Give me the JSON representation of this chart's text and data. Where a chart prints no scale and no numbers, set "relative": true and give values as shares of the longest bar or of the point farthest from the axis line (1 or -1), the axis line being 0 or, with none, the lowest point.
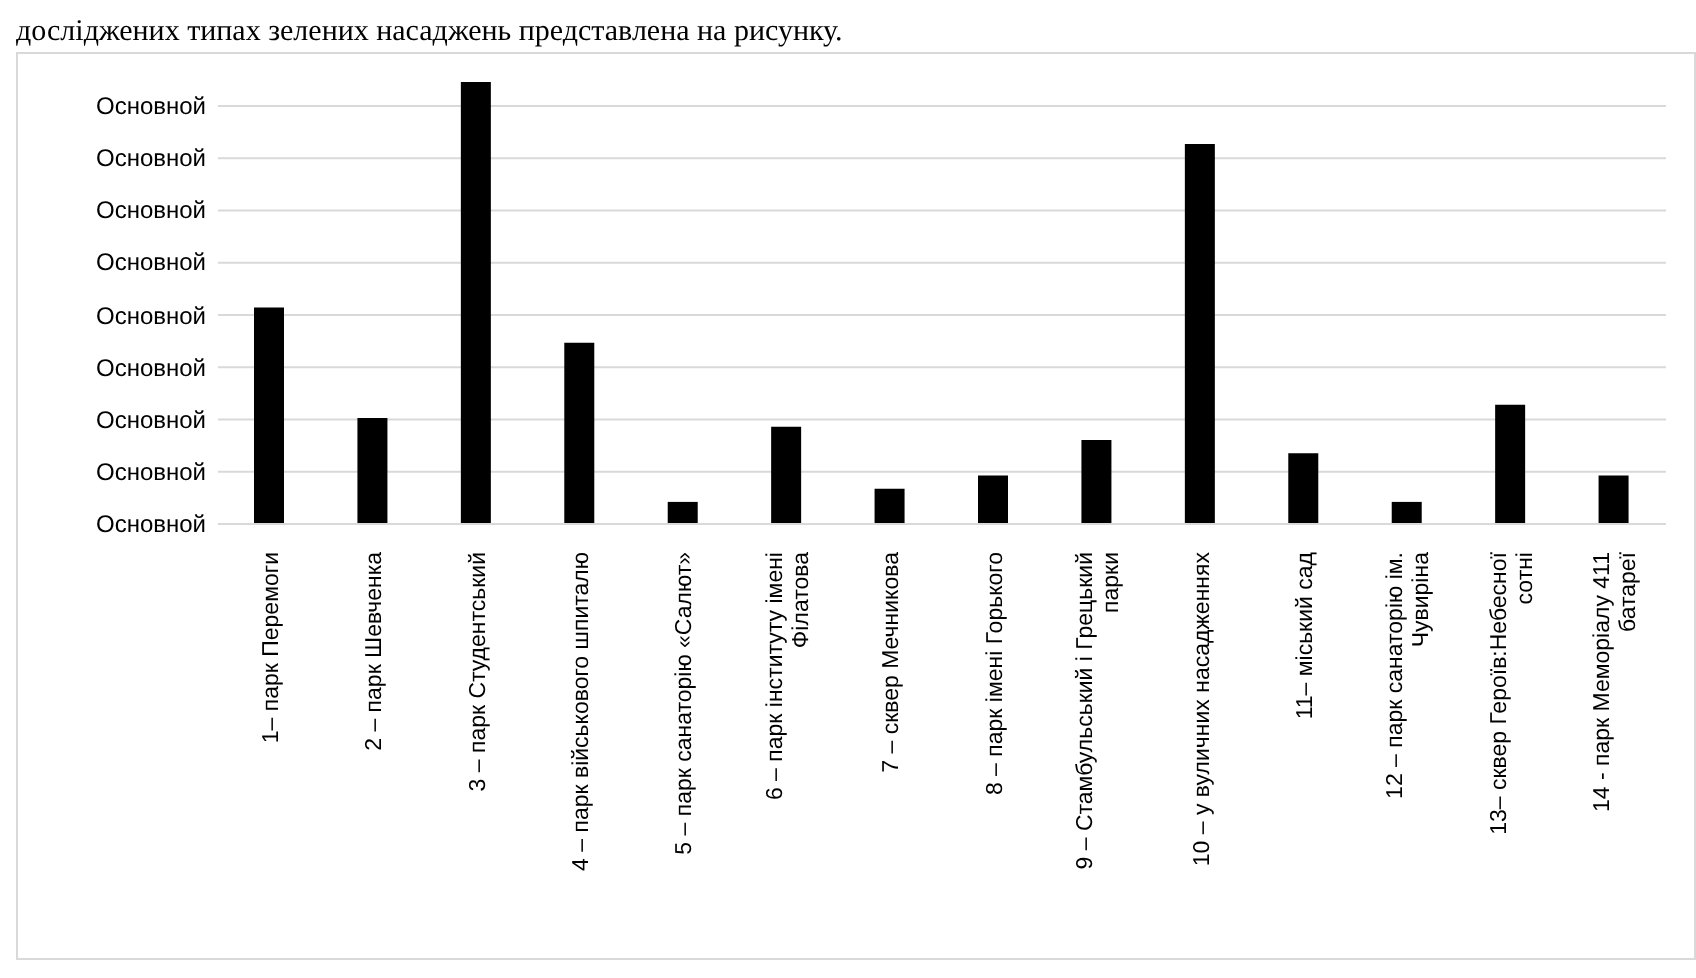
{
  "chart_data": {
    "type": "bar",
    "relative": true,
    "annotations": [
      "досліджених типах зелених насаджень представлена на рисунку.",
      "Основной",
      "Основной",
      "Основной",
      "Основной",
      "Основной",
      "Основной",
      "Основной",
      "Основной",
      "Основной"
    ],
    "categories": [
      "1– парк Перемоги",
      "2 – парк Шевченка",
      "3 –  парк Студентський",
      "4 – парк військового шпиталю",
      "5 – парк санаторію  «Салют»",
      "6 – парк інституту імені Філатова",
      "7 – сквер Мечникова",
      "8 – парк імені Горького",
      "9 –  Стамбульський і Грецький парки",
      "10 – у вуличних насадженнях",
      "11– міський сад",
      "12 – парк санаторію ім. Чувиріна",
      "13– сквер Героїв:Небесної сотні",
      "14 - парк Меморіалу 411 батареї"
    ],
    "values": [
      0.49,
      0.24,
      1,
      0.41,
      0.05,
      0.22,
      0.08,
      0.11,
      0.19,
      0.86,
      0.16,
      0.05,
      0.27,
      0.11
    ],
    "color": "#000000",
    "grid": "y"
  }
}
